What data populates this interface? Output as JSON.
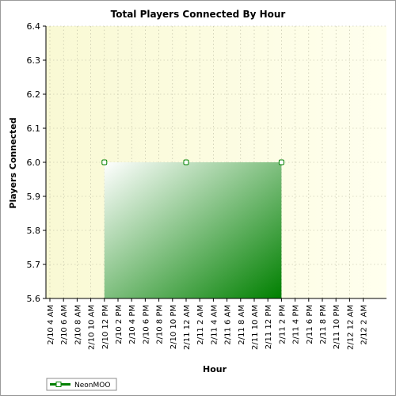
{
  "chart_data": {
    "type": "area",
    "title": "Total Players Connected By Hour",
    "xlabel": "Hour",
    "ylabel": "Players Connected",
    "ylim": [
      5.6,
      6.4
    ],
    "y_ticks": [
      "5.6",
      "5.7",
      "5.8",
      "5.9",
      "6.0",
      "6.1",
      "6.2",
      "6.3",
      "6.4"
    ],
    "x_ticks": [
      "2/10 4 AM",
      "2/10 6 AM",
      "2/10 8 AM",
      "2/10 10 AM",
      "2/10 12 PM",
      "2/10 2 PM",
      "2/10 4 PM",
      "2/10 6 PM",
      "2/10 8 PM",
      "2/10 10 PM",
      "2/11 12 AM",
      "2/11 2 AM",
      "2/11 4 AM",
      "2/11 6 AM",
      "2/11 8 AM",
      "2/11 10 AM",
      "2/11 12 PM",
      "2/11 2 PM",
      "2/11 4 PM",
      "2/11 6 PM",
      "2/11 8 PM",
      "2/11 10 PM",
      "2/12 12 AM",
      "2/12 2 AM"
    ],
    "grid": true,
    "legend_position": "bottom-left",
    "series": [
      {
        "name": "NeonMOO",
        "color": "#008000",
        "points": [
          {
            "x": "2/10 12 PM",
            "y": 6.0
          },
          {
            "x": "2/11 12 AM",
            "y": 6.0
          },
          {
            "x": "2/11 2 PM",
            "y": 6.0
          }
        ]
      }
    ]
  }
}
